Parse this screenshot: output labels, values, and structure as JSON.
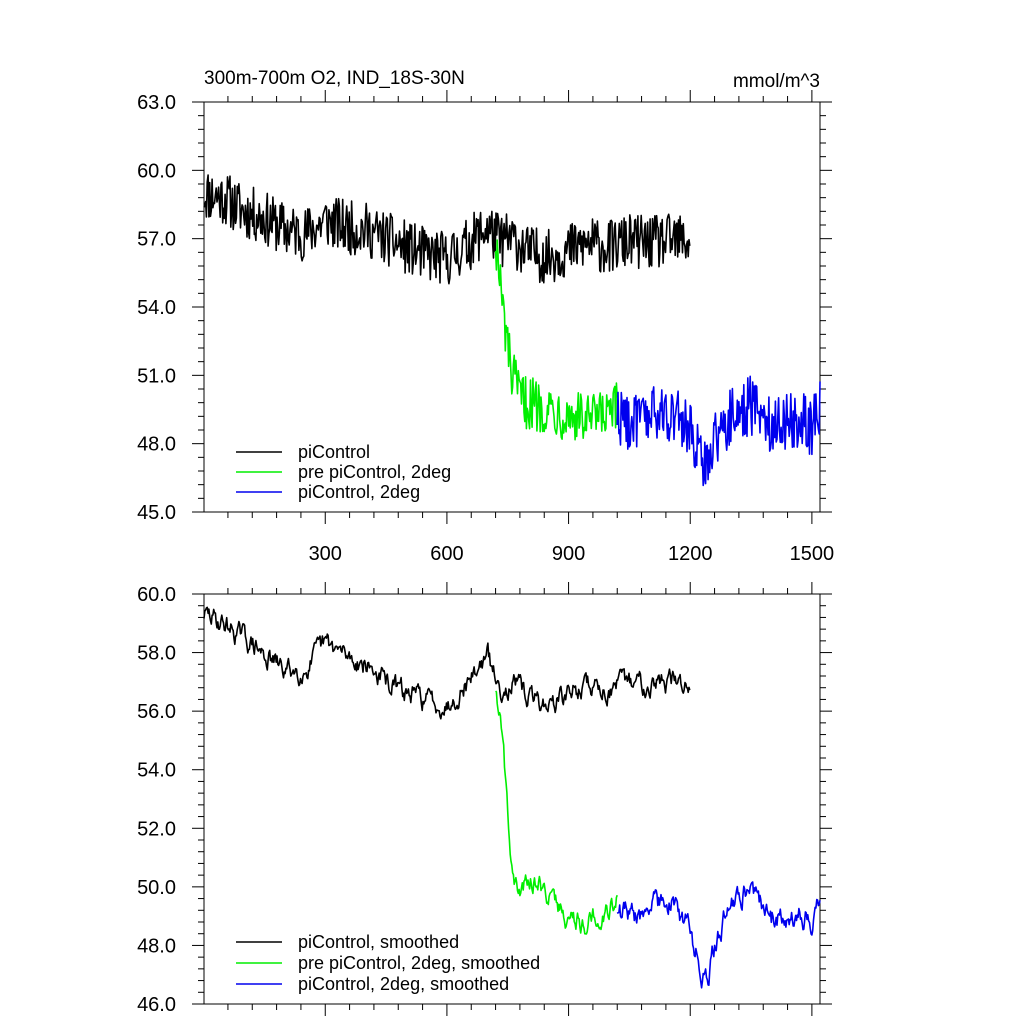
{
  "chart_data": [
    {
      "type": "line",
      "title": "300m-700m O2, IND_18S-30N",
      "units": "mmol/m^3",
      "xlim": [
        1,
        1520
      ],
      "ylim": [
        45.0,
        63.0
      ],
      "xticks": [
        300,
        600,
        900,
        1200,
        1500
      ],
      "yticks": [
        "63.0",
        "60.0",
        "57.0",
        "54.0",
        "51.0",
        "48.0",
        "45.0"
      ],
      "ytick_values": [
        63,
        60,
        57,
        54,
        51,
        48,
        45
      ],
      "series": [
        {
          "name": "piControl",
          "color": "#000000",
          "x": [
            1,
            50,
            100,
            150,
            200,
            250,
            300,
            350,
            400,
            450,
            500,
            550,
            600,
            650,
            700,
            730,
            760,
            800,
            850,
            900,
            950,
            1000,
            1050,
            1100,
            1150,
            1200
          ],
          "y": [
            59.0,
            58.8,
            58.2,
            57.9,
            57.4,
            57.2,
            57.8,
            57.5,
            57.4,
            57.0,
            56.6,
            56.3,
            56.1,
            56.7,
            57.5,
            56.9,
            57.0,
            56.4,
            56.2,
            56.5,
            56.8,
            56.6,
            56.9,
            56.8,
            56.9,
            56.9
          ],
          "noise": 1.2
        },
        {
          "name": "pre piControl, 2deg",
          "color": "#00ee00",
          "x": [
            720,
            740,
            760,
            780,
            800,
            850,
            900,
            950,
            1000,
            1020
          ],
          "y": [
            57.0,
            53.5,
            51.0,
            50.0,
            49.8,
            49.6,
            49.3,
            49.0,
            49.2,
            49.5
          ],
          "noise": 1.2
        },
        {
          "name": "piControl, 2deg",
          "color": "#0000ee",
          "x": [
            1020,
            1060,
            1100,
            1150,
            1200,
            1230,
            1260,
            1300,
            1350,
            1400,
            1450,
            1500,
            1520
          ],
          "y": [
            49.3,
            48.9,
            49.2,
            49.4,
            48.6,
            47.0,
            48.2,
            49.2,
            49.7,
            48.9,
            49.1,
            48.8,
            49.6
          ],
          "noise": 1.3
        }
      ]
    },
    {
      "type": "line",
      "xlim": [
        1,
        1520
      ],
      "ylim": [
        46.0,
        60.0
      ],
      "xticks": [
        300,
        600,
        900,
        1200,
        1500
      ],
      "yticks": [
        "60.0",
        "58.0",
        "56.0",
        "54.0",
        "52.0",
        "50.0",
        "48.0",
        "46.0"
      ],
      "ytick_values": [
        60,
        58,
        56,
        54,
        52,
        50,
        48,
        46
      ],
      "series": [
        {
          "name": "piControl, smoothed",
          "color": "#000000",
          "x": [
            1,
            50,
            100,
            150,
            200,
            250,
            300,
            350,
            400,
            450,
            500,
            550,
            600,
            650,
            700,
            730,
            760,
            800,
            850,
            900,
            950,
            1000,
            1050,
            1100,
            1150,
            1200
          ],
          "y": [
            59.3,
            59.0,
            58.5,
            57.9,
            57.4,
            57.4,
            58.3,
            57.9,
            57.6,
            57.0,
            56.6,
            56.4,
            56.2,
            57.0,
            57.9,
            56.7,
            57.0,
            56.5,
            56.2,
            56.6,
            56.9,
            56.7,
            57.0,
            57.0,
            57.0,
            56.9
          ],
          "noise": 0.45
        },
        {
          "name": "pre piControl, 2deg, smoothed",
          "color": "#00ee00",
          "x": [
            720,
            735,
            750,
            765,
            780,
            800,
            850,
            900,
            950,
            1000,
            1020
          ],
          "y": [
            56.8,
            55.5,
            52.5,
            50.2,
            49.6,
            50.4,
            49.8,
            48.9,
            48.8,
            49.3,
            49.6
          ],
          "noise": 0.45
        },
        {
          "name": "piControl, 2deg, smoothed",
          "color": "#0000ee",
          "x": [
            1020,
            1060,
            1100,
            1150,
            1200,
            1220,
            1240,
            1260,
            1300,
            1350,
            1400,
            1450,
            1500,
            1520
          ],
          "y": [
            49.2,
            48.9,
            49.3,
            49.6,
            48.5,
            47.5,
            46.6,
            48.0,
            49.5,
            50.0,
            49.0,
            49.1,
            48.9,
            49.8
          ],
          "noise": 0.5
        }
      ]
    }
  ]
}
